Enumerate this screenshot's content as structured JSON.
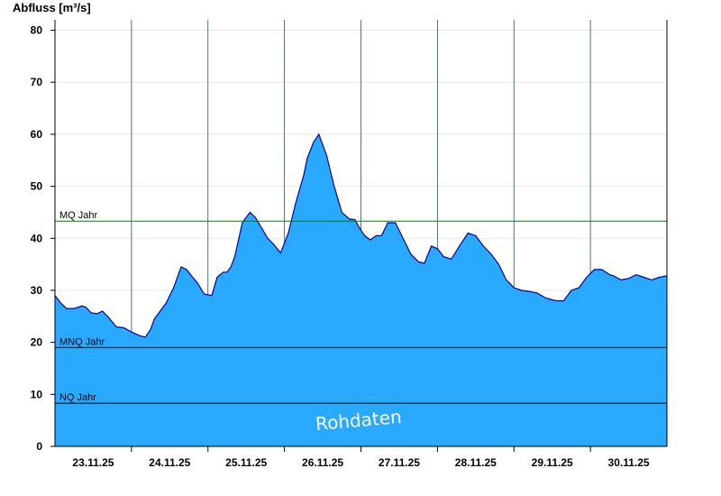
{
  "chart_data": {
    "type": "area",
    "ylabel": "Abfluss [m³/s]",
    "xlabel": "",
    "ylim": [
      0,
      82
    ],
    "yticks": [
      0,
      10,
      20,
      30,
      40,
      50,
      60,
      70,
      80
    ],
    "x_tick_labels": [
      "23.11.25",
      "24.11.25",
      "25.11.25",
      "26.11.25",
      "27.11.25",
      "28.11.25",
      "29.11.25",
      "30.11.25"
    ],
    "x_unit": "days since 22.11.25 18:00",
    "x_range": [
      0,
      8
    ],
    "grid": "vertical at day boundaries",
    "colors": {
      "area_fill": "#29A9FF",
      "area_line": "#0000A0",
      "mq_line": "#008000",
      "ref_line": "#000000"
    },
    "reference_lines": [
      {
        "label": "MQ Jahr",
        "value": 43.3,
        "color": "#008000"
      },
      {
        "label": "MNQ Jahr",
        "value": 19.0,
        "color": "#000000"
      },
      {
        "label": "NQ Jahr",
        "value": 8.3,
        "color": "#000000"
      }
    ],
    "watermark": "Rohdaten",
    "series": [
      {
        "name": "Abfluss",
        "x": [
          0,
          0.08,
          0.15,
          0.25,
          0.35,
          0.4,
          0.47,
          0.55,
          0.62,
          0.7,
          0.8,
          0.9,
          1.0,
          1.1,
          1.18,
          1.25,
          1.3,
          1.35,
          1.45,
          1.55,
          1.65,
          1.72,
          1.8,
          1.86,
          1.95,
          2.05,
          2.12,
          2.2,
          2.25,
          2.3,
          2.35,
          2.45,
          2.55,
          2.62,
          2.7,
          2.78,
          2.85,
          2.95,
          3.05,
          3.15,
          3.25,
          3.3,
          3.38,
          3.45,
          3.55,
          3.65,
          3.75,
          3.85,
          3.92,
          3.98,
          4.05,
          4.12,
          4.2,
          4.27,
          4.35,
          4.45,
          4.55,
          4.65,
          4.75,
          4.83,
          4.92,
          5.0,
          5.08,
          5.18,
          5.3,
          5.4,
          5.5,
          5.6,
          5.7,
          5.8,
          5.9,
          6.0,
          6.1,
          6.2,
          6.3,
          6.42,
          6.55,
          6.65,
          6.75,
          6.85,
          6.95,
          7.05,
          7.15,
          7.25,
          7.3,
          7.4,
          7.5,
          7.6,
          7.7,
          7.8,
          7.9,
          8.0
        ],
        "values": [
          29,
          27.5,
          26.5,
          26.5,
          27,
          26.8,
          25.7,
          25.5,
          26,
          24.8,
          23.0,
          22.8,
          22.0,
          21.3,
          21.0,
          22.5,
          24.5,
          25.5,
          27.5,
          30.5,
          34.5,
          34.0,
          32.5,
          31.5,
          29.3,
          29.0,
          32.5,
          33.5,
          33.5,
          34.5,
          36.5,
          43.0,
          45.0,
          44.0,
          42.0,
          40.0,
          39.0,
          37.2,
          41.0,
          47.0,
          52.0,
          55.5,
          58.5,
          60.0,
          56.0,
          50.0,
          45.0,
          43.7,
          43.6,
          42.0,
          40.5,
          39.7,
          40.5,
          40.5,
          43.0,
          43.0,
          40.0,
          37.0,
          35.5,
          35.2,
          38.5,
          38.0,
          36.5,
          36.0,
          38.8,
          41.0,
          40.5,
          38.5,
          37.0,
          35.0,
          32.0,
          30.5,
          30.0,
          29.8,
          29.5,
          28.5,
          28.0,
          28.0,
          30.0,
          30.5,
          32.5,
          34.0,
          34.0,
          33.0,
          32.8,
          32.0,
          32.3,
          33.0,
          32.5,
          32.0,
          32.5,
          32.8
        ]
      }
    ]
  }
}
